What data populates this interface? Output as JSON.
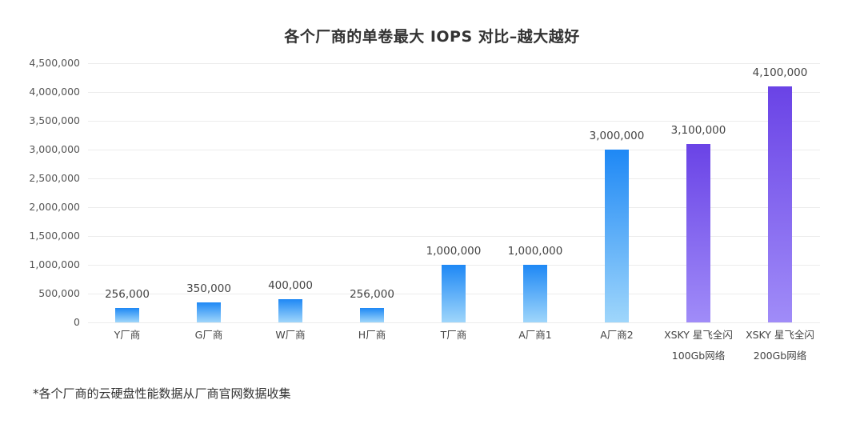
{
  "chart_data": {
    "type": "bar",
    "title": "各个厂商的单卷最大 IOPS 对比–越大越好",
    "xlabel": "",
    "ylabel": "",
    "ylim": [
      0,
      4500000
    ],
    "yticks": [
      "0",
      "500,000",
      "1,000,000",
      "1,500,000",
      "2,000,000",
      "2,500,000",
      "3,000,000",
      "3,500,000",
      "4,000,000",
      "4,500,000"
    ],
    "grid": true,
    "legend": "none",
    "categories": [
      "Y厂商",
      "G厂商",
      "W厂商",
      "H厂商",
      "T厂商",
      "A厂商1",
      "A厂商2",
      "XSKY 星飞全闪 100Gb网络",
      "XSKY 星飞全闪 200Gb网络"
    ],
    "values": [
      256000,
      350000,
      400000,
      256000,
      1000000,
      1000000,
      3000000,
      3100000,
      4100000
    ],
    "value_labels": [
      "256,000",
      "350,000",
      "400,000",
      "256,000",
      "1,000,000",
      "1,000,000",
      "3,000,000",
      "3,100,000",
      "4,100,000"
    ],
    "category_lines": [
      [
        "Y厂商"
      ],
      [
        "G厂商"
      ],
      [
        "W厂商"
      ],
      [
        "H厂商"
      ],
      [
        "T厂商"
      ],
      [
        "A厂商1"
      ],
      [
        "A厂商2"
      ],
      [
        "XSKY 星飞全闪",
        "100Gb网络"
      ],
      [
        "XSKY 星飞全闪",
        "200Gb网络"
      ]
    ],
    "bar_colors": [
      "blue",
      "blue",
      "blue",
      "blue",
      "blue",
      "blue",
      "blue",
      "purple",
      "purple"
    ],
    "colors": {
      "blue_top": "#1e88f5",
      "blue_bottom": "#9fd6fb",
      "purple_top": "#6a43e6",
      "purple_bottom": "#a08cf8"
    }
  },
  "footnote": "*各个厂商的云硬盘性能数据从厂商官网数据收集"
}
